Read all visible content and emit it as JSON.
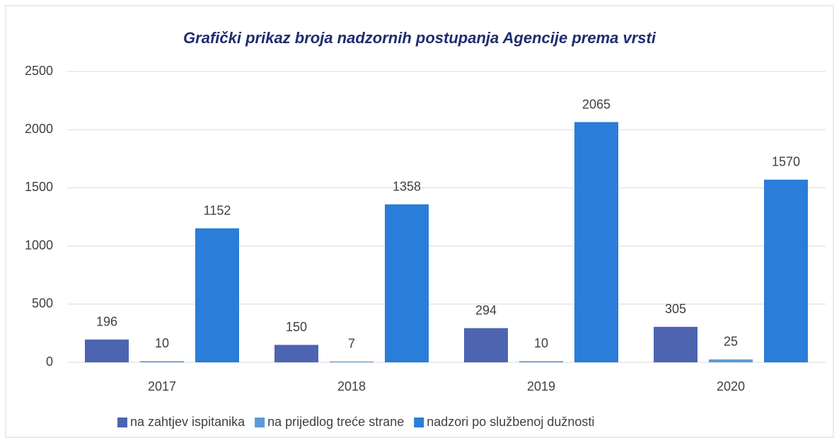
{
  "chart_data": {
    "type": "bar",
    "title": "Grafički prikaz broja nadzornih postupanja Agencije prema vrsti",
    "categories": [
      "2017",
      "2018",
      "2019",
      "2020"
    ],
    "series": [
      {
        "name": "na zahtjev ispitanika",
        "color": "#4d64b0",
        "values": [
          196,
          150,
          294,
          305
        ]
      },
      {
        "name": "na prijedlog treće strane",
        "color": "#5b9bd5",
        "values": [
          10,
          7,
          10,
          25
        ]
      },
      {
        "name": "nadzori po službenoj dužnosti",
        "color": "#2a7dd8",
        "values": [
          1152,
          1358,
          2065,
          1570
        ]
      }
    ],
    "ylim": [
      0,
      2500
    ],
    "yticks": [
      0,
      500,
      1000,
      1500,
      2000,
      2500
    ],
    "grid": true,
    "legend": "bottom"
  }
}
